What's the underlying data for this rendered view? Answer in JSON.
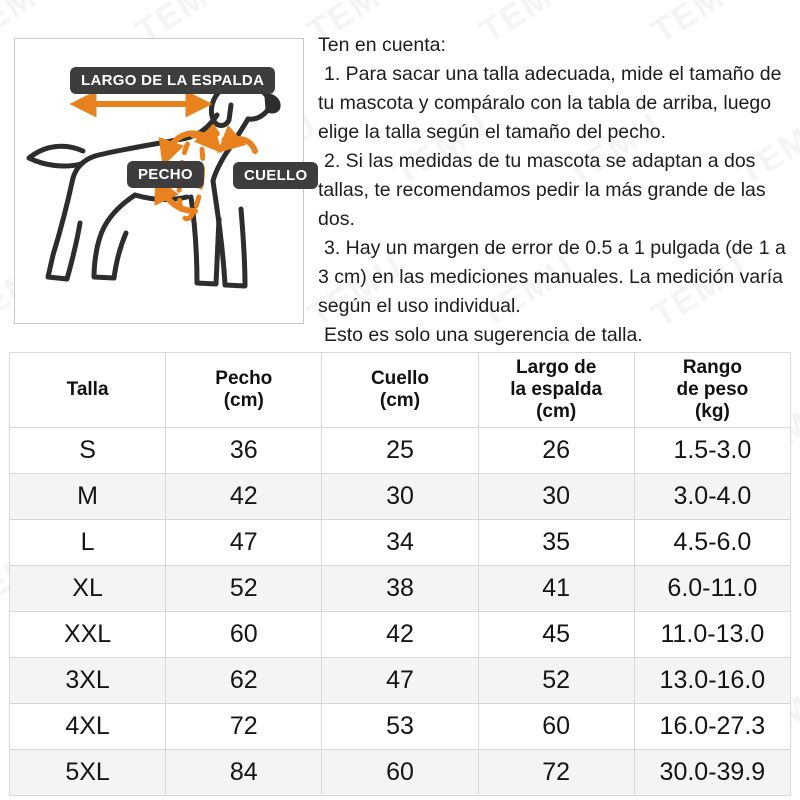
{
  "watermark": {
    "text": "TEMU"
  },
  "colors": {
    "accent": "#E8821E",
    "badge_bg": "#3D3D3D",
    "line_art": "#2D2D2D",
    "row_alt": "#F4F4F4",
    "table_border": "#D8D8D8"
  },
  "diagram": {
    "back_label": "LARGO DE LA ESPALDA",
    "chest_label": "PECHO",
    "neck_label": "CUELLO"
  },
  "notes": {
    "title": "Ten en cuenta:",
    "items": [
      "1. Para sacar una talla adecuada, mide el tamaño de tu mascota y compáralo con la tabla de arriba, luego elige la talla según el tamaño del pecho.",
      "2. Si las medidas de tu mascota se adaptan a dos tallas, te recomendamos pedir la más grande de las dos.",
      "3. Hay un margen de error de 0.5 a 1 pulgada (de 1 a 3 cm) en las mediciones manuales. La medición varía según el uso individual.",
      "Esto es solo una sugerencia de talla."
    ]
  },
  "size_table": {
    "headers": [
      {
        "lines": [
          "Talla"
        ]
      },
      {
        "lines": [
          "Pecho",
          "(cm)"
        ]
      },
      {
        "lines": [
          "Cuello",
          "(cm)"
        ]
      },
      {
        "lines": [
          "Largo de",
          "la espalda",
          "(cm)"
        ]
      },
      {
        "lines": [
          "Rango",
          "de peso",
          "(kg)"
        ]
      }
    ],
    "rows": [
      [
        "S",
        "36",
        "25",
        "26",
        "1.5-3.0"
      ],
      [
        "M",
        "42",
        "30",
        "30",
        "3.0-4.0"
      ],
      [
        "L",
        "47",
        "34",
        "35",
        "4.5-6.0"
      ],
      [
        "XL",
        "52",
        "38",
        "41",
        "6.0-11.0"
      ],
      [
        "XXL",
        "60",
        "42",
        "45",
        "11.0-13.0"
      ],
      [
        "3XL",
        "62",
        "47",
        "52",
        "13.0-16.0"
      ],
      [
        "4XL",
        "72",
        "53",
        "60",
        "16.0-27.3"
      ],
      [
        "5XL",
        "84",
        "60",
        "72",
        "30.0-39.9"
      ]
    ]
  }
}
